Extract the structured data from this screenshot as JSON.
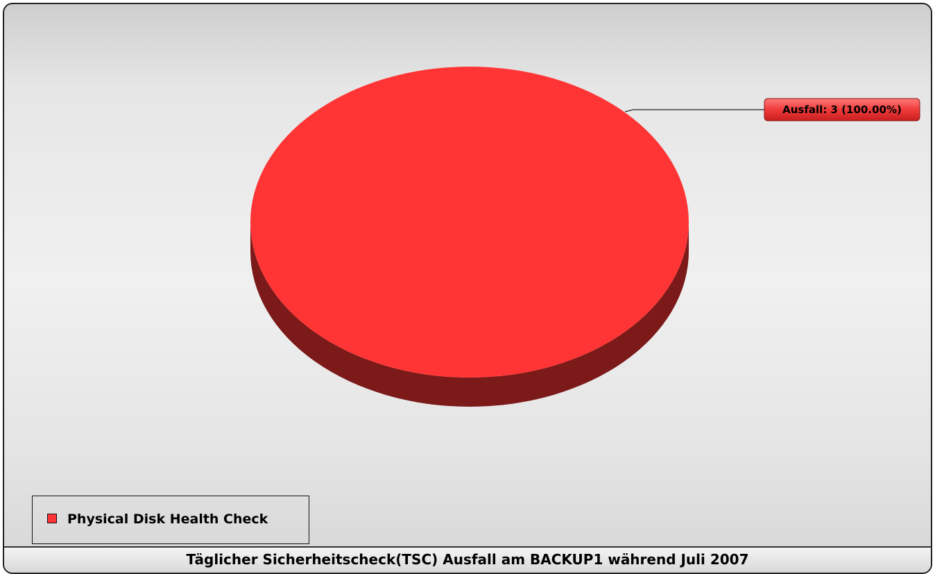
{
  "chart_data": {
    "type": "pie",
    "title": "Täglicher Sicherheitscheck(TSC) Ausfall am BACKUP1 während Juli 2007",
    "slices": [
      {
        "label": "Ausfall",
        "value": 3,
        "percent": 100.0,
        "display": "Ausfall: 3 (100.00%)",
        "color": "#ff3535"
      }
    ],
    "legend": {
      "placement": "bottom-left",
      "entries": [
        {
          "name": "Physical Disk Health Check",
          "color": "#ff3535"
        }
      ]
    },
    "style": "3d"
  },
  "colors": {
    "slice_top": "#ff3535",
    "slice_side": "#7c1919",
    "label_bg": "#e83030",
    "leader_line": "#222222"
  }
}
